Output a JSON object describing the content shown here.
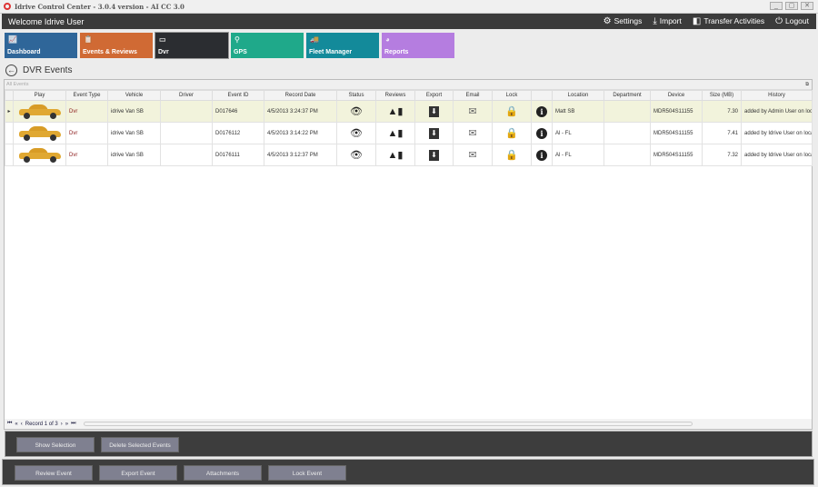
{
  "window": {
    "title": "Idrive Control Center - 3.0.4 version - AI CC 3.0",
    "controls": [
      "_",
      "▢",
      "✕"
    ]
  },
  "topbar": {
    "welcome": "Welcome Idrive User",
    "menu": [
      {
        "label": "Settings",
        "icon": "gear-icon"
      },
      {
        "label": "Import",
        "icon": "download-icon"
      },
      {
        "label": "Transfer Activities",
        "icon": "transfer-icon"
      },
      {
        "label": "Logout",
        "icon": "power-icon"
      }
    ]
  },
  "tiles": [
    {
      "label": "Dashboard",
      "color": "#2f6699"
    },
    {
      "label": "Events & Reviews",
      "color": "#d06a34"
    },
    {
      "label": "Dvr",
      "color": "#2b2d31"
    },
    {
      "label": "GPS",
      "color": "#1fa98a"
    },
    {
      "label": "Fleet Manager",
      "color": "#138a9a"
    },
    {
      "label": "Reports",
      "color": "#b57de0"
    }
  ],
  "page": {
    "title": "DVR Events",
    "group_label": "All Events"
  },
  "grid": {
    "columns": [
      "",
      "Play",
      "Event Type",
      "Vehicle",
      "Driver",
      "Event ID",
      "Record Date",
      "Status",
      "Reviews",
      "Export",
      "Email",
      "Lock",
      "",
      "Location",
      "Department",
      "Device",
      "Size (MB)",
      "History"
    ],
    "rows": [
      {
        "event_type": "Dvr",
        "vehicle": "idrive Van SB",
        "driver": "",
        "event_id": "D017646",
        "record_date": "4/5/2013 3:24:37 PM",
        "location": "Matt SB",
        "department": "",
        "device": "MDR504S11155",
        "size": "7.30",
        "history": "added by Admin User on loca",
        "selected": true
      },
      {
        "event_type": "Dvr",
        "vehicle": "idrive Van SB",
        "driver": "",
        "event_id": "D0176112",
        "record_date": "4/5/2013 3:14:22 PM",
        "location": "Al - FL",
        "department": "",
        "device": "MDR504S11155",
        "size": "7.41",
        "history": "added by Idrive User on loca",
        "selected": false
      },
      {
        "event_type": "Dvr",
        "vehicle": "idrive Van SB",
        "driver": "",
        "event_id": "D0176111",
        "record_date": "4/5/2013 3:12:37 PM",
        "location": "Al - FL",
        "department": "",
        "device": "MDR504S11155",
        "size": "7.32",
        "history": "added by Idrive User on loca",
        "selected": false
      }
    ],
    "record_nav": "Record 1 of 3"
  },
  "actions": {
    "show_selection": "Show Selection",
    "delete_selected": "Delete Selected  Events",
    "review_event": "Review Event",
    "export_event": "Export Event",
    "attachments": "Attachments",
    "lock_event": "Lock Event"
  }
}
